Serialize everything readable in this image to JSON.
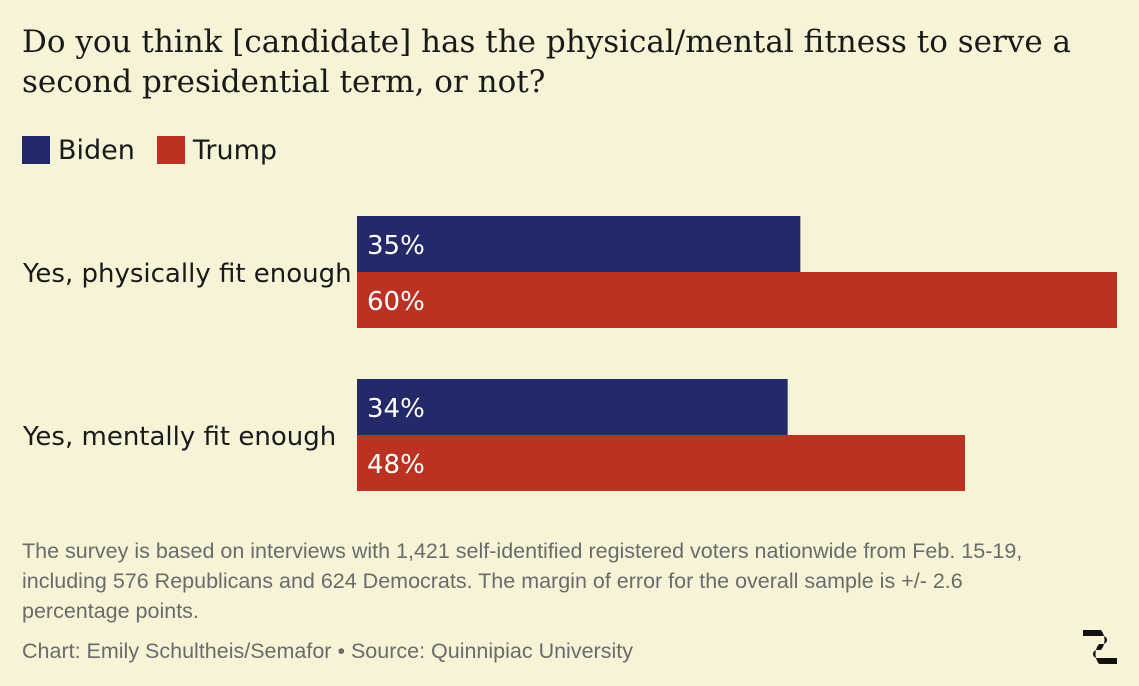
{
  "title": "Do you think [candidate] has the physical/mental fitness to serve a second presidential term, or not?",
  "note": "The survey is based on interviews with 1,421 self-identified registered voters nationwide from Feb. 15-19, including 576 Republicans and 624 Democrats. The margin of error for the overall sample is +/- 2.6 percentage points.",
  "credit": "Chart: Emily Schultheis/Semafor • Source: Quinnipiac University",
  "colors": {
    "biden": "#24296a",
    "trump": "#bc3222",
    "background": "#f7f3d6"
  },
  "logo_icon": "semafor-logo-icon",
  "chart_data": {
    "type": "bar",
    "orientation": "horizontal",
    "categories": [
      "Yes, physically fit enough",
      "Yes, mentally fit enough"
    ],
    "series": [
      {
        "name": "Biden",
        "values": [
          35,
          34
        ],
        "labels": [
          "35%",
          "34%"
        ],
        "color": "#24296a"
      },
      {
        "name": "Trump",
        "values": [
          60,
          48
        ],
        "labels": [
          "60%",
          "48%"
        ],
        "color": "#bc3222"
      }
    ],
    "xlim": [
      0,
      60
    ],
    "grid": false,
    "legend": "top-left"
  }
}
